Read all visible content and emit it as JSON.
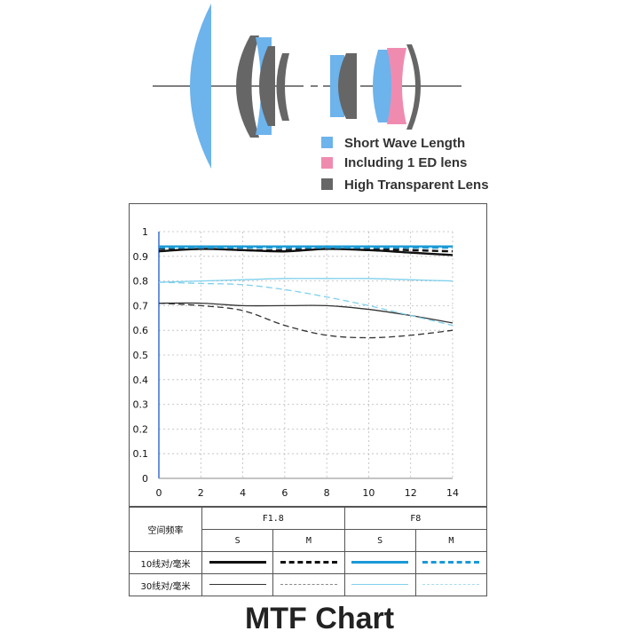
{
  "lens_legend": [
    {
      "label": "Short Wave Length",
      "color": "#6db3ec"
    },
    {
      "label": "Including 1 ED lens",
      "color": "#f08bb0"
    },
    {
      "label": "High Transparent Lens",
      "color": "#666666"
    }
  ],
  "title": "MTF Chart",
  "chart_data": {
    "type": "line",
    "xlim": [
      0,
      14
    ],
    "ylim": [
      0,
      1
    ],
    "x_ticks": [
      "0",
      "2",
      "4",
      "6",
      "8",
      "10",
      "12",
      "14"
    ],
    "y_ticks": [
      "0",
      "0.1",
      "0.2",
      "0.3",
      "0.4",
      "0.5",
      "0.6",
      "0.7",
      "0.8",
      "0.9",
      "1"
    ],
    "grid": true,
    "series": [
      {
        "color": "#111111",
        "style": "solid",
        "weight": "thick",
        "x": [
          0,
          2,
          4,
          6,
          8,
          10,
          12,
          14
        ],
        "y": [
          0.92,
          0.93,
          0.925,
          0.92,
          0.93,
          0.925,
          0.915,
          0.905
        ]
      },
      {
        "color": "#111111",
        "style": "dashed",
        "weight": "thick",
        "x": [
          0,
          2,
          4,
          6,
          8,
          10,
          12,
          14
        ],
        "y": [
          0.93,
          0.935,
          0.925,
          0.925,
          0.935,
          0.93,
          0.925,
          0.92
        ]
      },
      {
        "color": "#1a9ad6",
        "style": "solid",
        "weight": "thick",
        "x": [
          0,
          2,
          4,
          6,
          8,
          10,
          12,
          14
        ],
        "y": [
          0.94,
          0.94,
          0.94,
          0.94,
          0.94,
          0.94,
          0.94,
          0.94
        ]
      },
      {
        "color": "#1a9ad6",
        "style": "dashed",
        "weight": "thick",
        "x": [
          0,
          2,
          4,
          6,
          8,
          10,
          12,
          14
        ],
        "y": [
          0.935,
          0.935,
          0.935,
          0.935,
          0.935,
          0.935,
          0.935,
          0.935
        ]
      },
      {
        "color": "#333333",
        "style": "solid",
        "weight": "thin",
        "x": [
          0,
          2,
          4,
          6,
          8,
          10,
          12,
          14
        ],
        "y": [
          0.71,
          0.71,
          0.7,
          0.7,
          0.7,
          0.685,
          0.66,
          0.63
        ]
      },
      {
        "color": "#333333",
        "style": "dashed",
        "weight": "thin",
        "x": [
          0,
          2,
          4,
          6,
          8,
          10,
          12,
          14
        ],
        "y": [
          0.71,
          0.7,
          0.68,
          0.62,
          0.58,
          0.57,
          0.58,
          0.6
        ]
      },
      {
        "color": "#7fd0ec",
        "style": "solid",
        "weight": "thin",
        "x": [
          0,
          2,
          4,
          6,
          8,
          10,
          12,
          14
        ],
        "y": [
          0.795,
          0.8,
          0.805,
          0.81,
          0.81,
          0.81,
          0.805,
          0.8
        ]
      },
      {
        "color": "#7fd0ec",
        "style": "dashed",
        "weight": "thin",
        "x": [
          0,
          2,
          4,
          6,
          8,
          10,
          12,
          14
        ],
        "y": [
          0.795,
          0.79,
          0.785,
          0.765,
          0.735,
          0.7,
          0.66,
          0.62
        ]
      }
    ]
  },
  "table": {
    "header_left": "空间频率",
    "groups": [
      "F1.8",
      "F8"
    ],
    "sub": [
      "S",
      "M",
      "S",
      "M"
    ],
    "rows": [
      {
        "label": "10线对/毫米",
        "samples": [
          {
            "color": "#111111",
            "style": "solid",
            "width": 3
          },
          {
            "color": "#111111",
            "style": "dashed",
            "width": 3
          },
          {
            "color": "#1a9ad6",
            "style": "solid",
            "width": 3
          },
          {
            "color": "#1a9ad6",
            "style": "dashed",
            "width": 3
          }
        ]
      },
      {
        "label": "30线对/毫米",
        "samples": [
          {
            "color": "#333333",
            "style": "solid",
            "width": 1
          },
          {
            "color": "#888888",
            "style": "dashed",
            "width": 1
          },
          {
            "color": "#7fd0ec",
            "style": "solid",
            "width": 1
          },
          {
            "color": "#a8dcef",
            "style": "dashed",
            "width": 1
          }
        ]
      }
    ]
  }
}
